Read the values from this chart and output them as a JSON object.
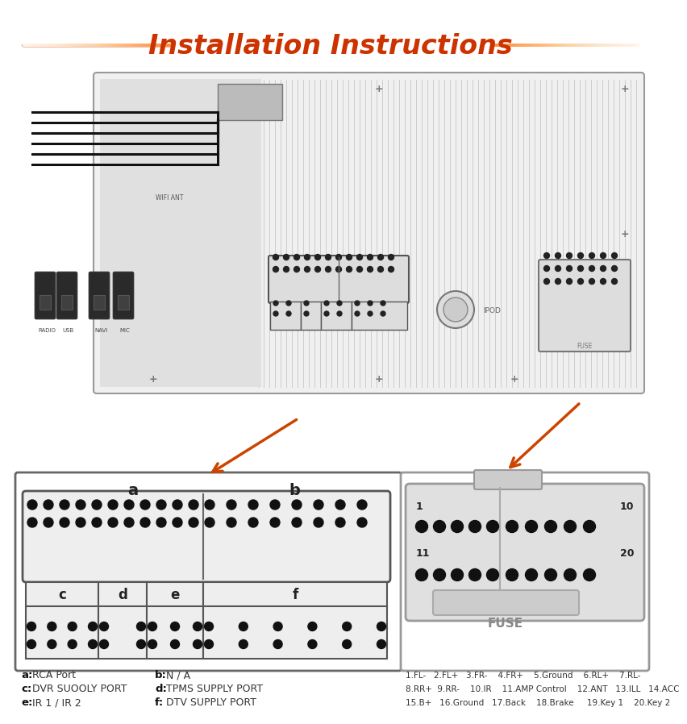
{
  "title": "Installation Instructions",
  "title_color": "#CC3300",
  "title_fontsize": 24,
  "bg_color": "#FFFFFF",
  "port_labels": [
    "RADIO",
    "USB",
    "NAVI",
    "MIC"
  ],
  "wifi_label": "WIFI ANT",
  "ipod_label": "IPOD",
  "fuse_label_box": "FUSE",
  "connector_a_label": "a",
  "connector_b_label": "b",
  "connector_c_label": "c",
  "connector_d_label": "d",
  "connector_e_label": "e",
  "connector_f_label": "f",
  "legend": [
    [
      "a:",
      "RCA Port",
      "b:",
      "N / A"
    ],
    [
      "c:",
      "DVR SUOOLY PORT",
      "d:",
      "TPMS SUPPLY PORT"
    ],
    [
      "e:",
      "IR 1 / IR 2",
      "f:",
      "DTV SUPPLY PORT"
    ]
  ],
  "fuse_pin_row1": "1.FL-   2.FL+   3.FR-    4.FR+    5.Ground    6.RL+    7.RL-",
  "fuse_pin_row2": "8.RR+  9.RR-    10.IR    11.AMP Control    12.ANT   13.ILL   14.ACC",
  "fuse_pin_row3": "15.B+   16.Ground   17.Back    18.Brake     19.Key 1    20.Key 2"
}
